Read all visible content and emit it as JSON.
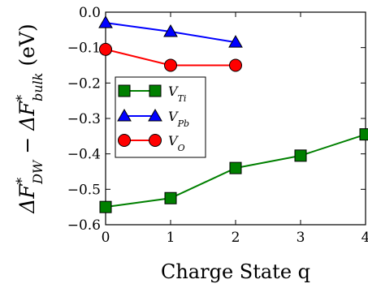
{
  "chart_data": {
    "type": "line",
    "xlabel": "Charge State q",
    "ylabel": "ΔF*DW − ΔF*bulk (eV)",
    "ylabel_parts": {
      "delta1": "ΔF",
      "star1": "*",
      "sub1": "DW",
      "minus": " − ",
      "delta2": "ΔF",
      "star2": "*",
      "sub2": "bulk",
      "unit": " (eV)"
    },
    "xlim": [
      0,
      4
    ],
    "ylim": [
      -0.6,
      0.0
    ],
    "xticks": [
      0,
      1,
      2,
      3,
      4
    ],
    "xtick_labels": [
      "0",
      "1",
      "2",
      "3",
      "4"
    ],
    "yticks": [
      0.0,
      -0.1,
      -0.2,
      -0.3,
      -0.4,
      -0.5,
      -0.6
    ],
    "ytick_labels": [
      "0.0",
      "−0.1",
      "−0.2",
      "−0.3",
      "−0.4",
      "−0.5",
      "−0.6"
    ],
    "grid": false,
    "legend_position": "center-left",
    "series": [
      {
        "name": "V_Ti",
        "label_base": "V",
        "label_sub": "Ti",
        "color": "#008000",
        "marker": "square",
        "x": [
          0,
          1,
          2,
          3,
          4
        ],
        "y": [
          -0.55,
          -0.525,
          -0.44,
          -0.405,
          -0.345
        ]
      },
      {
        "name": "V_Pb",
        "label_base": "V",
        "label_sub": "Pb",
        "color": "#0000ff",
        "marker": "triangle",
        "x": [
          0,
          1,
          2
        ],
        "y": [
          -0.03,
          -0.055,
          -0.085
        ]
      },
      {
        "name": "V_O",
        "label_base": "V",
        "label_sub": "O",
        "color": "#ff0000",
        "marker": "circle",
        "x": [
          0,
          1,
          2
        ],
        "y": [
          -0.105,
          -0.15,
          -0.15
        ]
      }
    ]
  }
}
